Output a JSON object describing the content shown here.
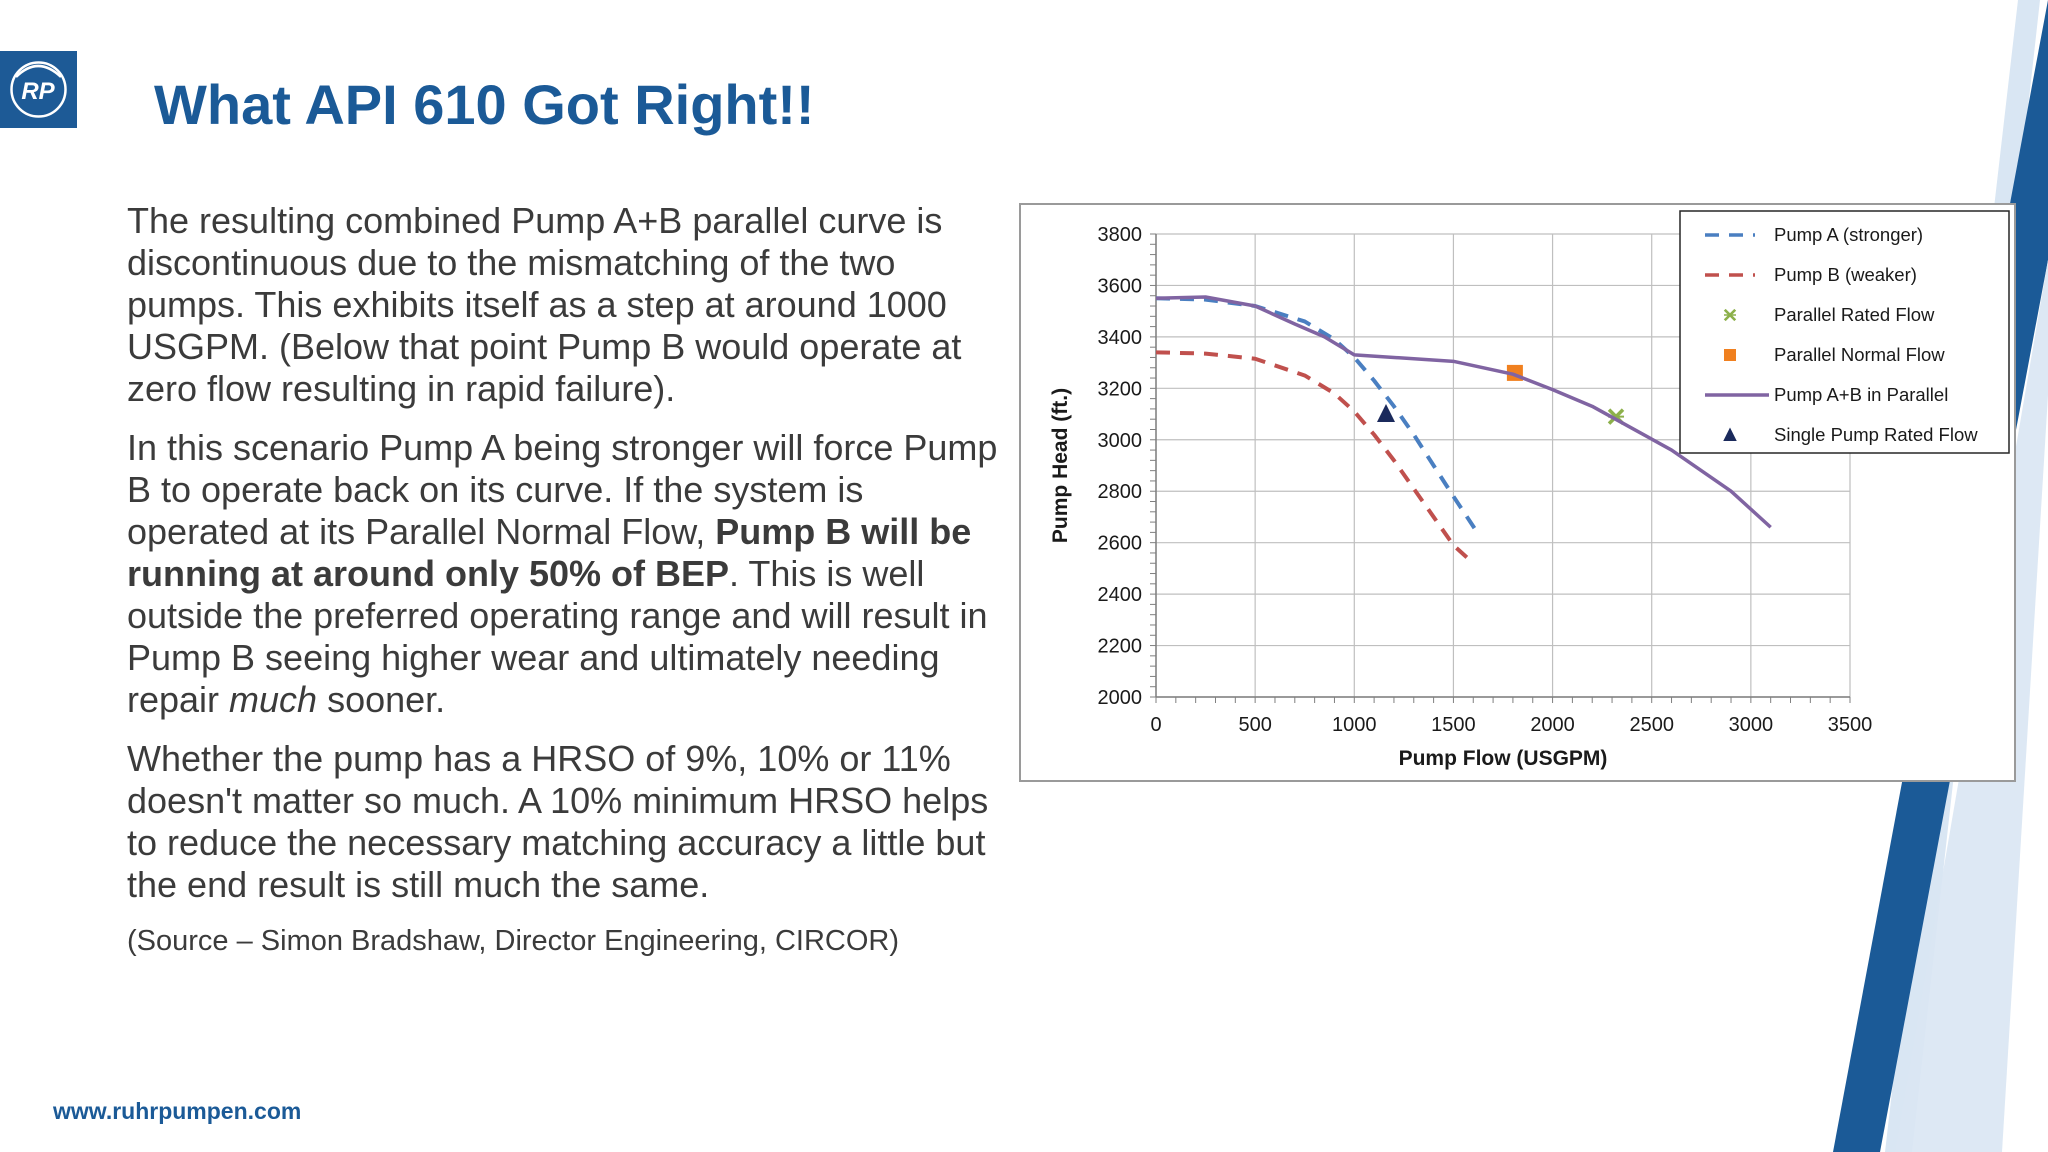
{
  "slide": {
    "logo_text": "RP",
    "title": "What API 610 Got Right!!",
    "paragraph1": "The resulting combined Pump A+B parallel curve is discontinuous due to the mismatching of the two pumps. This exhibits itself as a step at around 1000 USGPM. (Below that point Pump B would operate at zero flow resulting in rapid failure).",
    "paragraph2": {
      "part1": "In this scenario Pump A being stronger will force Pump B to operate back on its curve. If the system is operated at its Parallel Normal Flow, ",
      "bold": "Pump B will be running at around only 50% of BEP",
      "part2": ". This is well outside the preferred operating range and will result in Pump B seeing higher wear and ultimately needing repair ",
      "italic": "much",
      "part3": " sooner."
    },
    "paragraph3": "Whether the pump has a HRSO of 9%, 10% or 11% doesn't matter so much. A 10% minimum HRSO helps to reduce the necessary matching accuracy a little but the end result is still much the same.",
    "source": "(Source – Simon Bradshaw, Director Engineering, CIRCOR)",
    "footer_url": "www.ruhrpumpen.com"
  },
  "colors": {
    "brand_blue": "#1b5a97",
    "dark_navy": "#0e3a68",
    "light_blue": "#d9e6f3",
    "pump_a": "#4a7fc1",
    "pump_b": "#c0504d",
    "parallel": "#8064a2",
    "rated_flow": "#8cb04a",
    "normal_flow": "#f0801f",
    "single_rated": "#1b2a5c"
  },
  "chart_data": {
    "type": "line",
    "xlabel": "Pump Flow (USGPM)",
    "ylabel": "Pump Head (ft.)",
    "xlim": [
      0,
      3500
    ],
    "ylim": [
      2000,
      3800
    ],
    "xticks": [
      0,
      500,
      1000,
      1500,
      2000,
      2500,
      3000,
      3500
    ],
    "yticks": [
      2000,
      2200,
      2400,
      2600,
      2800,
      3000,
      3200,
      3400,
      3600,
      3800
    ],
    "x_minor_step": 100,
    "y_minor_step": 40,
    "grid": true,
    "legend_position": "top-right",
    "series": [
      {
        "name": "Pump A (stronger)",
        "style": "dashed",
        "color": "#4a7fc1",
        "x": [
          0,
          250,
          500,
          750,
          900,
          1000,
          1100,
          1200,
          1300,
          1400,
          1500,
          1620
        ],
        "y": [
          3550,
          3545,
          3520,
          3460,
          3390,
          3320,
          3230,
          3130,
          3020,
          2900,
          2780,
          2640
        ]
      },
      {
        "name": "Pump B (weaker)",
        "style": "dashed",
        "color": "#c0504d",
        "x": [
          0,
          250,
          500,
          750,
          900,
          1000,
          1100,
          1200,
          1300,
          1400,
          1500,
          1600
        ],
        "y": [
          3340,
          3335,
          3315,
          3250,
          3180,
          3110,
          3020,
          2920,
          2810,
          2700,
          2590,
          2520
        ]
      },
      {
        "name": "Parallel Rated Flow",
        "style": "marker-x",
        "color": "#8cb04a",
        "x": [
          2320
        ],
        "y": [
          3090
        ]
      },
      {
        "name": "Parallel Normal Flow",
        "style": "marker-square",
        "color": "#f0801f",
        "x": [
          1810
        ],
        "y": [
          3260
        ]
      },
      {
        "name": "Pump A+B in Parallel",
        "style": "solid",
        "color": "#8064a2",
        "x": [
          0,
          250,
          500,
          700,
          850,
          1000,
          1500,
          1800,
          2000,
          2200,
          2400,
          2600,
          2900,
          3100
        ],
        "y": [
          3550,
          3555,
          3520,
          3450,
          3400,
          3330,
          3305,
          3255,
          3195,
          3130,
          3045,
          2960,
          2800,
          2660
        ]
      },
      {
        "name": "Single Pump Rated Flow",
        "style": "marker-triangle",
        "color": "#1b2a5c",
        "x": [
          1160
        ],
        "y": [
          3100
        ]
      }
    ]
  }
}
